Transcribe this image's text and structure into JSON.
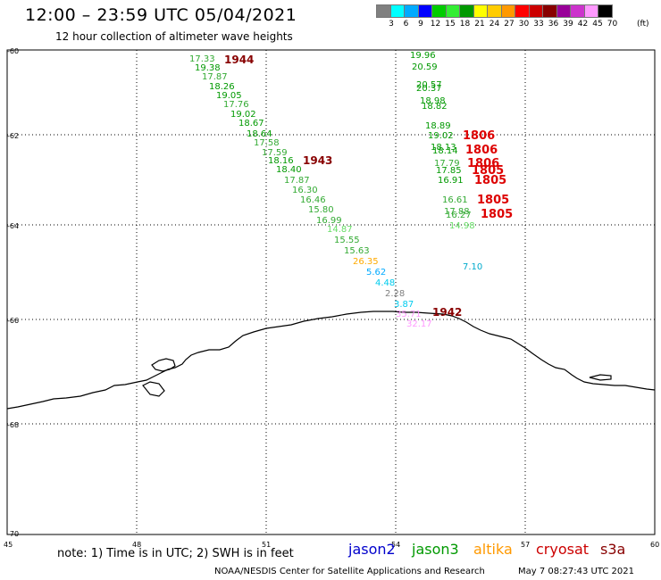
{
  "title": "12:00 – 23:59 UTC 05/04/2021",
  "subtitle": "12 hour collection of altimeter wave heights",
  "scale": {
    "unit": "(ft)",
    "colors": [
      "#808080",
      "#00ffff",
      "#00aaff",
      "#0000ff",
      "#00cc00",
      "#33ee33",
      "#009900",
      "#ffff00",
      "#ffcc00",
      "#ff9900",
      "#ff0000",
      "#cc0000",
      "#880000",
      "#990099",
      "#cc33cc",
      "#ff99ff",
      "#000000"
    ],
    "labels": [
      "3",
      "6",
      "9",
      "12",
      "15",
      "18",
      "21",
      "24",
      "27",
      "30",
      "33",
      "36",
      "39",
      "42",
      "45",
      "70"
    ]
  },
  "axes": {
    "lat_labels": [
      "-60",
      "-62",
      "-64",
      "-66",
      "-68",
      "-70"
    ],
    "lon_labels": [
      "45",
      "48",
      "51",
      "54",
      "57",
      "60"
    ]
  },
  "tracks": [
    {
      "time_label": "1944",
      "values": [
        "17.33",
        "19.38",
        "17.87",
        "18.26",
        "19.05",
        "17.76",
        "19.02",
        "18.67",
        "18.64",
        "17.58",
        "17.59",
        "18.16",
        "18.40",
        "17.87",
        "16.30",
        "16.46",
        "15.80",
        "16.99",
        "14.87",
        "15.55",
        "15.63",
        "26.35",
        "5.62",
        "4.48",
        "2.28",
        "3.87"
      ]
    },
    {
      "time_label": "1943",
      "values": []
    },
    {
      "time_label": "1942",
      "values": [
        "35.71",
        "32.17"
      ]
    },
    {
      "time_label": "1806",
      "values": [
        "19.96",
        "20.59",
        "20.57",
        "20.37",
        "18.98",
        "18.82",
        "18.89",
        "19.02",
        "18.13",
        "18.14",
        "17.79",
        "17.85",
        "16.91"
      ]
    },
    {
      "time_label": "1805",
      "values": [
        "16.61",
        "17.88",
        "16.27",
        "14.98",
        "7.10"
      ]
    }
  ],
  "note": "note:  1) Time is in UTC;  2) SWH is in feet",
  "legend": [
    {
      "label": "jason2",
      "color": "#0000cc"
    },
    {
      "label": "jason3",
      "color": "#009900"
    },
    {
      "label": "altika",
      "color": "#ff9900"
    },
    {
      "label": "cryosat",
      "color": "#cc0000"
    },
    {
      "label": "s3a",
      "color": "#880000"
    }
  ],
  "credit": "NOAA/NESDIS Center for Satellite Applications and Research",
  "generated": "May  7 08:27:43 UTC 2021"
}
